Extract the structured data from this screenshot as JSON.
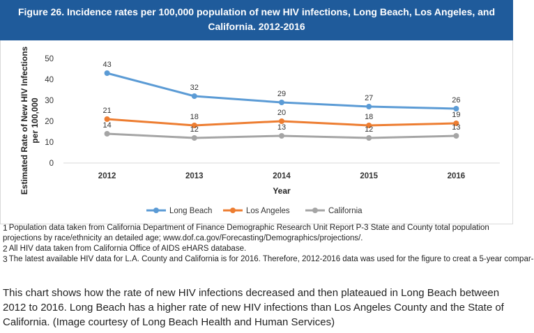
{
  "chart_data": {
    "type": "line",
    "title": "Figure 26. Incidence rates per 100,000 population of new HIV infections, Long Beach, Los Angeles, and California. 2012-2016",
    "xlabel": "Year",
    "ylabel": "Estimated Rate of New HIV Infections per 100,000",
    "categories": [
      "2012",
      "2013",
      "2014",
      "2015",
      "2016"
    ],
    "ylim": [
      0,
      50
    ],
    "yticks": [
      "0",
      "10",
      "20",
      "30",
      "40",
      "50"
    ],
    "grid": false,
    "legend_position": "bottom",
    "series": [
      {
        "name": "Long Beach",
        "color": "#5b9bd5",
        "values": [
          43,
          32,
          29,
          27,
          26
        ]
      },
      {
        "name": "Los Angeles",
        "color": "#ed7d31",
        "values": [
          21,
          18,
          20,
          18,
          19
        ]
      },
      {
        "name": "California",
        "color": "#a5a5a5",
        "values": [
          14,
          12,
          13,
          12,
          13
        ]
      }
    ]
  },
  "footnotes": [
    {
      "num": "1",
      "text": "Population data taken from California Department of Finance Demographic Research Unit Report P-3 State and County total population projections by race/ethnicity an detailed age; www.dof.ca.gov/Forecasting/Demographics/projections/."
    },
    {
      "num": "2",
      "text": "All HIV data taken from California Office of AIDS eHARS database."
    },
    {
      "num": "3",
      "text": "The latest available HIV data for L.A. County and California is for 2016. Therefore, 2012-2016 data was used for the figure to creat a 5-year compar-"
    }
  ],
  "caption": "This chart shows how the rate of new HIV infections decreased and then plateaued in Long Beach between 2012 to 2016. Long Beach has a higher rate of new HIV infections than Los Angeles County and the State of California. (Image courtesy of Long Beach Health and Human Services)"
}
